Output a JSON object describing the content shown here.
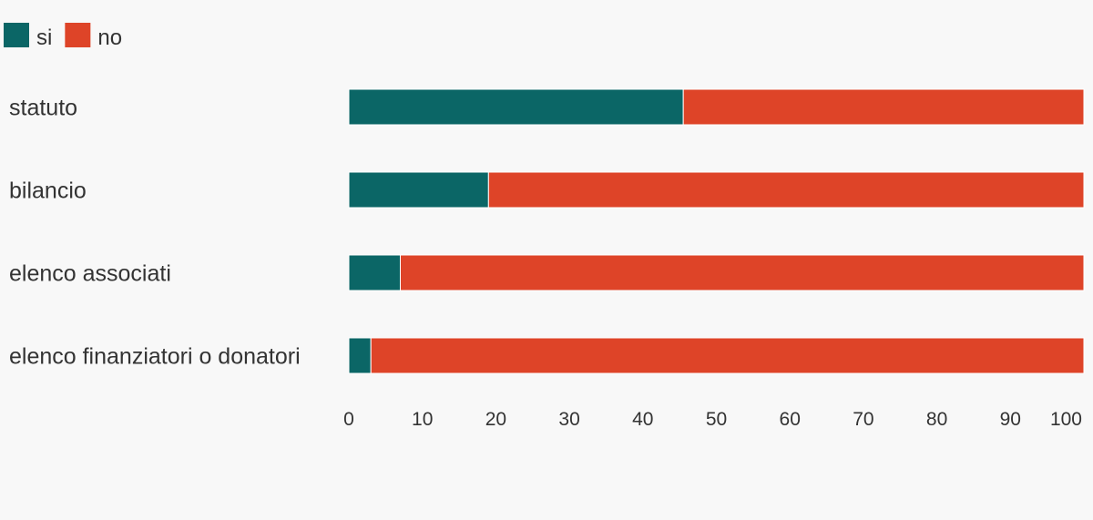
{
  "chart_data": {
    "type": "bar",
    "orientation": "horizontal",
    "stacked": true,
    "categories": [
      "statuto",
      "bilancio",
      "elenco associati",
      "elenco finanziatori o donatori"
    ],
    "series": [
      {
        "name": "si",
        "color": "#0b6666",
        "values": [
          45.5,
          19,
          7,
          3
        ]
      },
      {
        "name": "no",
        "color": "#de4428",
        "values": [
          54.5,
          81,
          93,
          97
        ]
      }
    ],
    "xlim": [
      0,
      100
    ],
    "x_ticks": [
      "0",
      "10",
      "20",
      "30",
      "40",
      "50",
      "60",
      "70",
      "80",
      "90",
      "100"
    ],
    "legend_position": "top-left",
    "grid": false
  }
}
